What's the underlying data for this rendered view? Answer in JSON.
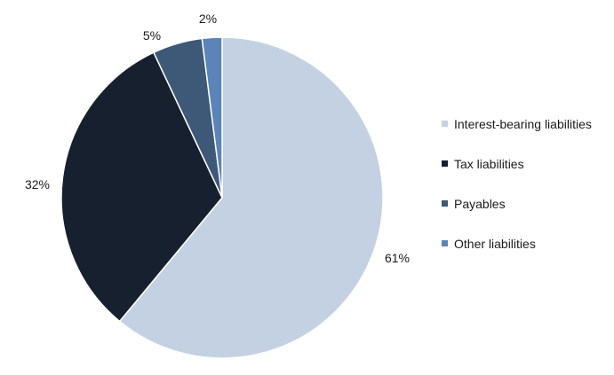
{
  "chart_data": {
    "type": "pie",
    "title": "",
    "slices": [
      {
        "label": "Interest-bearing liabilities",
        "value": 61,
        "value_label": "61%",
        "color": "#c3d1e2"
      },
      {
        "label": "Tax liabilities",
        "value": 32,
        "value_label": "32%",
        "color": "#16202f"
      },
      {
        "label": "Payables",
        "value": 5,
        "value_label": "5%",
        "color": "#3e5877"
      },
      {
        "label": "Other liabilities",
        "value": 2,
        "value_label": "2%",
        "color": "#5b84b8"
      }
    ],
    "legend": {
      "position": "right",
      "entries": [
        "Interest-bearing liabilities",
        "Tax liabilities",
        "Payables",
        "Other liabilities"
      ]
    },
    "start_angle": "12 o'clock",
    "direction": "clockwise"
  }
}
